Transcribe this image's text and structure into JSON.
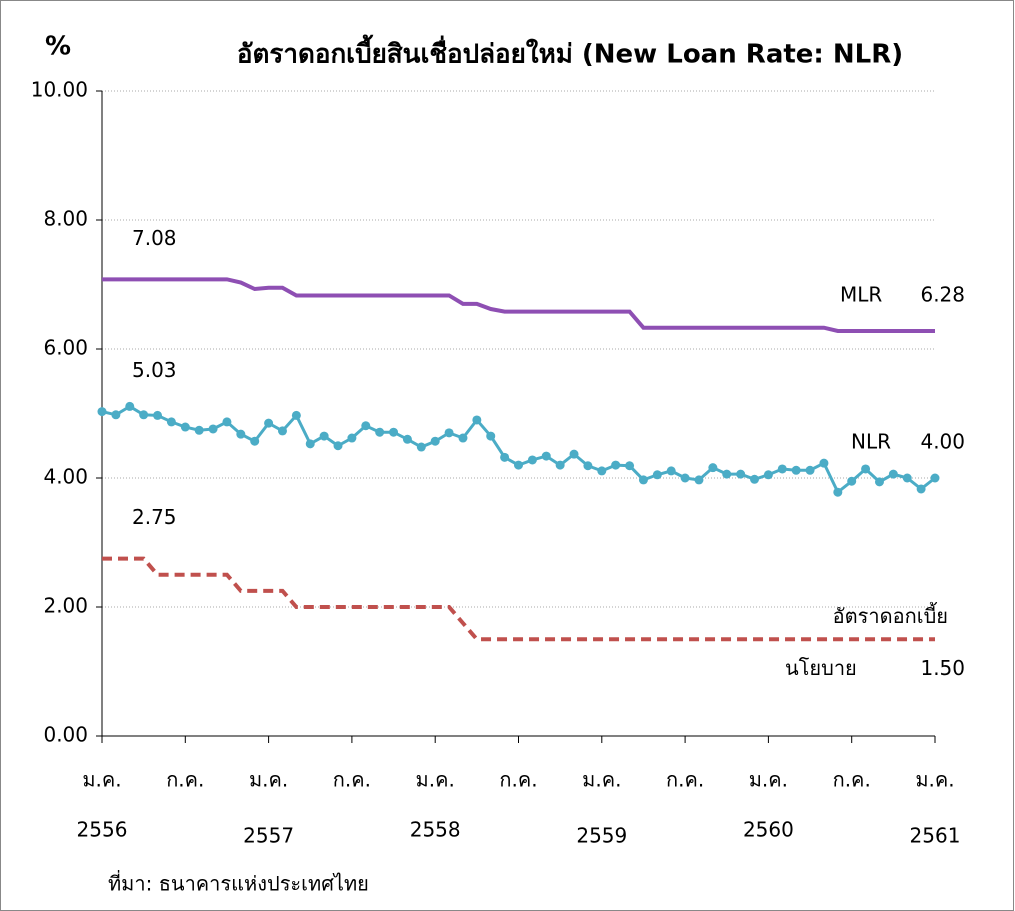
{
  "chart_data": {
    "type": "line",
    "title": "อัตราดอกเบี้ยสินเชื่อปล่อยใหม่ (New Loan Rate: NLR)",
    "y_label": "%",
    "source": "ที่มา: ธนาคารแห่งประเทศไทย",
    "categories": [
      "ม.ค.",
      null,
      null,
      null,
      null,
      null,
      "ก.ค.",
      null,
      null,
      null,
      null,
      null,
      "ม.ค.",
      null,
      null,
      null,
      null,
      null,
      "ก.ค.",
      null,
      null,
      null,
      null,
      null,
      "ม.ค.",
      null,
      null,
      null,
      null,
      null,
      "ก.ค.",
      null,
      null,
      null,
      null,
      null,
      "ม.ค.",
      null,
      null,
      null,
      null,
      null,
      "ก.ค.",
      null,
      null,
      null,
      null,
      null,
      "ม.ค.",
      null,
      null,
      null,
      null,
      null,
      "ก.ค.",
      null,
      null,
      null,
      null,
      null,
      "ม.ค."
    ],
    "years": [
      "2556",
      null,
      null,
      null,
      null,
      null,
      null,
      null,
      null,
      null,
      null,
      null,
      "2557",
      null,
      null,
      null,
      null,
      null,
      null,
      null,
      null,
      null,
      null,
      null,
      "2558",
      null,
      null,
      null,
      null,
      null,
      null,
      null,
      null,
      null,
      null,
      null,
      "2559",
      null,
      null,
      null,
      null,
      null,
      null,
      null,
      null,
      null,
      null,
      null,
      "2560",
      null,
      null,
      null,
      null,
      null,
      null,
      null,
      null,
      null,
      null,
      null,
      "2561"
    ],
    "series": [
      {
        "name": "MLR",
        "color": "#8e4fb3",
        "start_label": "7.08",
        "end_label": "6.28",
        "values": [
          7.08,
          7.08,
          7.08,
          7.08,
          7.08,
          7.08,
          7.08,
          7.08,
          7.08,
          7.08,
          7.03,
          6.93,
          6.95,
          6.95,
          6.83,
          6.83,
          6.83,
          6.83,
          6.83,
          6.83,
          6.83,
          6.83,
          6.83,
          6.83,
          6.83,
          6.83,
          6.7,
          6.7,
          6.62,
          6.58,
          6.58,
          6.58,
          6.58,
          6.58,
          6.58,
          6.58,
          6.58,
          6.58,
          6.58,
          6.33,
          6.33,
          6.33,
          6.33,
          6.33,
          6.33,
          6.33,
          6.33,
          6.33,
          6.33,
          6.33,
          6.33,
          6.33,
          6.33,
          6.28,
          6.28,
          6.28,
          6.28,
          6.28,
          6.28,
          6.28,
          6.28
        ]
      },
      {
        "name": "NLR",
        "color": "#4bacc6",
        "markers": true,
        "start_label": "5.03",
        "end_label": "4.00",
        "values": [
          5.03,
          4.98,
          5.11,
          4.98,
          4.97,
          4.87,
          4.79,
          4.74,
          4.76,
          4.87,
          4.68,
          4.57,
          4.85,
          4.73,
          4.97,
          4.53,
          4.65,
          4.5,
          4.62,
          4.81,
          4.71,
          4.71,
          4.6,
          4.48,
          4.57,
          4.7,
          4.62,
          4.9,
          4.65,
          4.32,
          4.2,
          4.28,
          4.34,
          4.2,
          4.37,
          4.19,
          4.11,
          4.2,
          4.19,
          3.97,
          4.05,
          4.11,
          4.0,
          3.97,
          4.16,
          4.06,
          4.06,
          3.98,
          4.05,
          4.14,
          4.12,
          4.12,
          4.23,
          3.78,
          3.95,
          4.14,
          3.94,
          4.06,
          4.0,
          3.83,
          4.0
        ]
      },
      {
        "name_lines": [
          "อัตราดอกเบี้ย",
          "นโยบาย"
        ],
        "color": "#c0504d",
        "dashed": true,
        "start_label": "2.75",
        "end_label": "1.50",
        "values": [
          2.75,
          2.75,
          2.75,
          2.75,
          2.5,
          2.5,
          2.5,
          2.5,
          2.5,
          2.5,
          2.25,
          2.25,
          2.25,
          2.25,
          2.0,
          2.0,
          2.0,
          2.0,
          2.0,
          2.0,
          2.0,
          2.0,
          2.0,
          2.0,
          2.0,
          2.0,
          1.75,
          1.5,
          1.5,
          1.5,
          1.5,
          1.5,
          1.5,
          1.5,
          1.5,
          1.5,
          1.5,
          1.5,
          1.5,
          1.5,
          1.5,
          1.5,
          1.5,
          1.5,
          1.5,
          1.5,
          1.5,
          1.5,
          1.5,
          1.5,
          1.5,
          1.5,
          1.5,
          1.5,
          1.5,
          1.5,
          1.5,
          1.5,
          1.5,
          1.5,
          1.5
        ]
      }
    ],
    "ylim": [
      0,
      10
    ],
    "yticks": [
      {
        "value": 0,
        "label": "0.00"
      },
      {
        "value": 2,
        "label": "2.00"
      },
      {
        "value": 4,
        "label": "4.00"
      },
      {
        "value": 6,
        "label": "6.00"
      },
      {
        "value": 8,
        "label": "8.00"
      },
      {
        "value": 10,
        "label": "10.00"
      }
    ],
    "grid": true
  }
}
